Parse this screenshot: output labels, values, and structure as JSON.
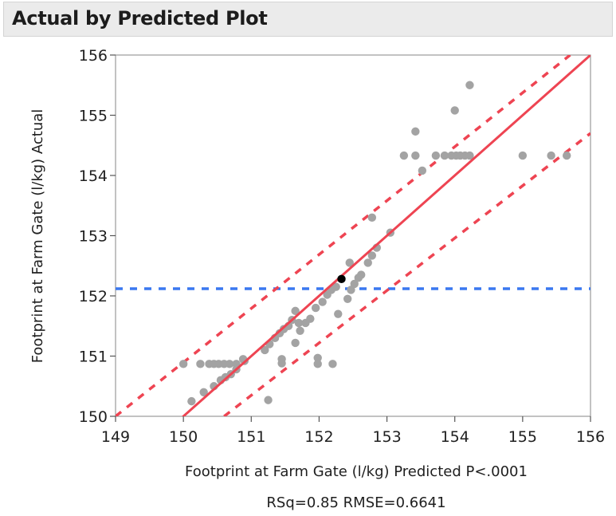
{
  "panel": {
    "title": "Actual by Predicted Plot"
  },
  "colors": {
    "fit_line": "#ee4452",
    "confidence": "#ee4452",
    "mean_line": "#3a78f0",
    "points": "#a3a3a3",
    "mean_point": "#000000"
  },
  "chart_data": {
    "type": "scatter",
    "title": "",
    "xlabel": "Footprint at Farm Gate (l/kg) Predicted P<.0001",
    "xlabel_line2": "RSq=0.85 RMSE=0.6641",
    "ylabel": "Footprint at Farm Gate (l/kg) Actual",
    "xlim": [
      149,
      156
    ],
    "ylim": [
      150,
      156
    ],
    "xticks": [
      149,
      150,
      151,
      152,
      153,
      154,
      155,
      156
    ],
    "yticks": [
      150,
      151,
      152,
      153,
      154,
      155,
      156
    ],
    "grid": false,
    "fit_line": {
      "slope": 1,
      "intercept": 0
    },
    "mean_line_y": 152.12,
    "mean_point": [
      152.33,
      152.28
    ],
    "confidence_curves": {
      "upper": [
        [
          149,
          150.0
        ],
        [
          155.7,
          156.0
        ]
      ],
      "lower": [
        [
          150.6,
          150.0
        ],
        [
          156,
          154.7
        ]
      ]
    },
    "points": [
      [
        150.0,
        150.87
      ],
      [
        150.12,
        150.25
      ],
      [
        150.25,
        150.87
      ],
      [
        150.38,
        150.87
      ],
      [
        150.45,
        150.87
      ],
      [
        150.52,
        150.87
      ],
      [
        150.6,
        150.87
      ],
      [
        150.68,
        150.87
      ],
      [
        150.78,
        150.87
      ],
      [
        150.88,
        150.95
      ],
      [
        150.3,
        150.4
      ],
      [
        150.45,
        150.5
      ],
      [
        150.55,
        150.6
      ],
      [
        150.62,
        150.65
      ],
      [
        150.7,
        150.7
      ],
      [
        150.78,
        150.78
      ],
      [
        150.9,
        150.92
      ],
      [
        151.2,
        151.1
      ],
      [
        151.27,
        151.2
      ],
      [
        151.35,
        151.3
      ],
      [
        151.42,
        151.38
      ],
      [
        151.48,
        151.45
      ],
      [
        151.55,
        151.5
      ],
      [
        151.6,
        151.6
      ],
      [
        151.7,
        151.55
      ],
      [
        151.65,
        151.75
      ],
      [
        151.8,
        151.55
      ],
      [
        151.87,
        151.62
      ],
      [
        151.72,
        151.42
      ],
      [
        151.65,
        151.22
      ],
      [
        151.45,
        150.95
      ],
      [
        151.45,
        150.88
      ],
      [
        151.25,
        150.27
      ],
      [
        151.98,
        150.97
      ],
      [
        151.98,
        150.87
      ],
      [
        152.2,
        150.87
      ],
      [
        151.95,
        151.8
      ],
      [
        152.05,
        151.9
      ],
      [
        152.12,
        152.02
      ],
      [
        152.18,
        152.1
      ],
      [
        152.25,
        152.15
      ],
      [
        152.28,
        151.7
      ],
      [
        152.42,
        151.95
      ],
      [
        152.47,
        152.1
      ],
      [
        152.52,
        152.2
      ],
      [
        152.58,
        152.3
      ],
      [
        152.62,
        152.35
      ],
      [
        152.45,
        152.55
      ],
      [
        152.72,
        152.55
      ],
      [
        152.78,
        152.67
      ],
      [
        152.85,
        152.8
      ],
      [
        153.05,
        153.05
      ],
      [
        152.78,
        153.3
      ],
      [
        153.25,
        154.33
      ],
      [
        153.42,
        154.33
      ],
      [
        153.42,
        154.73
      ],
      [
        153.52,
        154.08
      ],
      [
        153.72,
        154.33
      ],
      [
        153.85,
        154.33
      ],
      [
        153.95,
        154.33
      ],
      [
        154.02,
        154.33
      ],
      [
        154.08,
        154.33
      ],
      [
        154.15,
        154.33
      ],
      [
        154.22,
        154.33
      ],
      [
        154.0,
        155.08
      ],
      [
        154.22,
        155.5
      ],
      [
        155.0,
        154.33
      ],
      [
        155.42,
        154.33
      ],
      [
        155.65,
        154.33
      ]
    ]
  }
}
